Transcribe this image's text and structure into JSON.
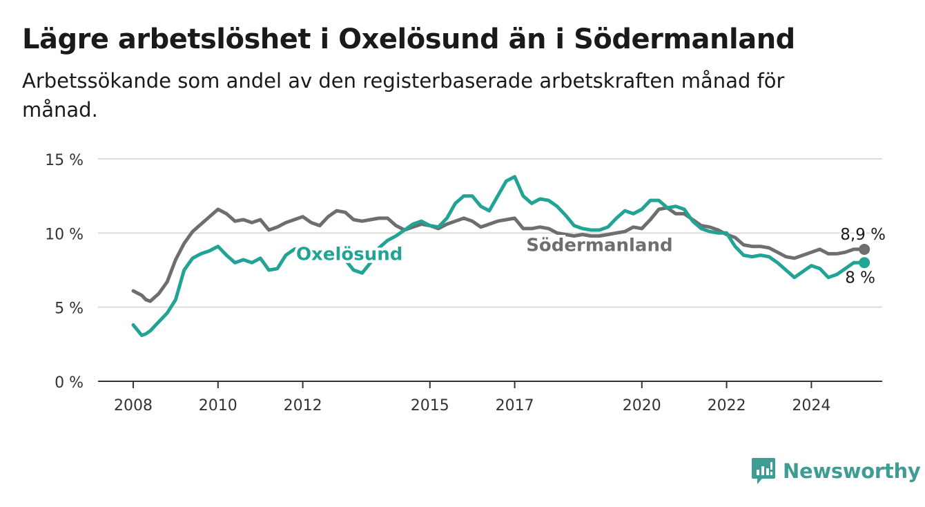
{
  "header": {
    "title": "Lägre arbetslöshet i Oxelösund än i Södermanland",
    "subtitle": "Arbetssökande som andel av den registerbaserade arbetskraften månad för månad."
  },
  "brand": {
    "name": "Newsworthy",
    "icon": "newsworthy-logo-icon",
    "color": "#3f9c95"
  },
  "chart_data": {
    "type": "line",
    "xlim": [
      2008,
      2025.6
    ],
    "ylim": [
      0,
      15
    ],
    "grid": true,
    "y_ticks": [
      {
        "value": 0,
        "label": "0 %"
      },
      {
        "value": 5,
        "label": "5 %"
      },
      {
        "value": 10,
        "label": "10 %"
      },
      {
        "value": 15,
        "label": "15 %"
      }
    ],
    "x_ticks": [
      {
        "value": 2008,
        "label": "2008"
      },
      {
        "value": 2010,
        "label": "2010"
      },
      {
        "value": 2012,
        "label": "2012"
      },
      {
        "value": 2015,
        "label": "2015"
      },
      {
        "value": 2017,
        "label": "2017"
      },
      {
        "value": 2020,
        "label": "2020"
      },
      {
        "value": 2022,
        "label": "2022"
      },
      {
        "value": 2024,
        "label": "2024"
      }
    ],
    "series": [
      {
        "name": "Södermanland",
        "color": "#6e6e70",
        "end_label": "8,9 %",
        "x": [
          2008.0,
          2008.2,
          2008.3,
          2008.4,
          2008.6,
          2008.8,
          2009.0,
          2009.2,
          2009.4,
          2009.6,
          2009.8,
          2010.0,
          2010.2,
          2010.4,
          2010.6,
          2010.8,
          2011.0,
          2011.2,
          2011.4,
          2011.6,
          2011.8,
          2012.0,
          2012.2,
          2012.4,
          2012.6,
          2012.8,
          2013.0,
          2013.2,
          2013.4,
          2013.6,
          2013.8,
          2014.0,
          2014.2,
          2014.4,
          2014.6,
          2014.8,
          2015.0,
          2015.2,
          2015.4,
          2015.6,
          2015.8,
          2016.0,
          2016.2,
          2016.4,
          2016.6,
          2016.8,
          2017.0,
          2017.2,
          2017.4,
          2017.6,
          2017.8,
          2018.0,
          2018.2,
          2018.4,
          2018.6,
          2018.8,
          2019.0,
          2019.2,
          2019.4,
          2019.6,
          2019.8,
          2020.0,
          2020.2,
          2020.4,
          2020.6,
          2020.8,
          2021.0,
          2021.2,
          2021.4,
          2021.6,
          2021.8,
          2022.0,
          2022.2,
          2022.4,
          2022.6,
          2022.8,
          2023.0,
          2023.2,
          2023.4,
          2023.6,
          2023.8,
          2024.0,
          2024.2,
          2024.4,
          2024.6,
          2024.8,
          2025.0,
          2025.25
        ],
        "values": [
          6.1,
          5.8,
          5.5,
          5.4,
          5.9,
          6.7,
          8.2,
          9.3,
          10.1,
          10.6,
          11.1,
          11.6,
          11.3,
          10.8,
          10.9,
          10.7,
          10.9,
          10.2,
          10.4,
          10.7,
          10.9,
          11.1,
          10.7,
          10.5,
          11.1,
          11.5,
          11.4,
          10.9,
          10.8,
          10.9,
          11.0,
          11.0,
          10.5,
          10.2,
          10.4,
          10.6,
          10.5,
          10.3,
          10.6,
          10.8,
          11.0,
          10.8,
          10.4,
          10.6,
          10.8,
          10.9,
          11.0,
          10.3,
          10.3,
          10.4,
          10.3,
          10.0,
          9.9,
          9.8,
          9.9,
          9.8,
          9.8,
          9.9,
          10.0,
          10.1,
          10.4,
          10.3,
          10.9,
          11.6,
          11.7,
          11.3,
          11.3,
          10.9,
          10.5,
          10.4,
          10.2,
          9.9,
          9.7,
          9.2,
          9.1,
          9.1,
          9.0,
          8.7,
          8.4,
          8.3,
          8.5,
          8.7,
          8.9,
          8.6,
          8.6,
          8.7,
          8.9,
          8.9
        ]
      },
      {
        "name": "Oxelösund",
        "color": "#21a396",
        "end_label": "8 %",
        "x": [
          2008.0,
          2008.2,
          2008.3,
          2008.4,
          2008.6,
          2008.8,
          2009.0,
          2009.2,
          2009.4,
          2009.6,
          2009.8,
          2010.0,
          2010.2,
          2010.4,
          2010.6,
          2010.8,
          2011.0,
          2011.2,
          2011.4,
          2011.6,
          2011.8,
          2012.0,
          2012.2,
          2012.4,
          2012.6,
          2012.8,
          2013.0,
          2013.2,
          2013.4,
          2013.6,
          2013.8,
          2014.0,
          2014.2,
          2014.4,
          2014.6,
          2014.8,
          2015.0,
          2015.2,
          2015.4,
          2015.6,
          2015.8,
          2016.0,
          2016.2,
          2016.4,
          2016.6,
          2016.8,
          2017.0,
          2017.2,
          2017.4,
          2017.6,
          2017.8,
          2018.0,
          2018.2,
          2018.4,
          2018.6,
          2018.8,
          2019.0,
          2019.2,
          2019.4,
          2019.6,
          2019.8,
          2020.0,
          2020.2,
          2020.4,
          2020.6,
          2020.8,
          2021.0,
          2021.2,
          2021.4,
          2021.6,
          2021.8,
          2022.0,
          2022.2,
          2022.4,
          2022.6,
          2022.8,
          2023.0,
          2023.2,
          2023.4,
          2023.6,
          2023.8,
          2024.0,
          2024.2,
          2024.4,
          2024.6,
          2024.8,
          2025.0,
          2025.25
        ],
        "values": [
          3.8,
          3.1,
          3.2,
          3.4,
          4.0,
          4.6,
          5.5,
          7.5,
          8.3,
          8.6,
          8.8,
          9.1,
          8.5,
          8.0,
          8.2,
          8.0,
          8.3,
          7.5,
          7.6,
          8.5,
          8.9,
          9.0,
          8.8,
          8.3,
          8.4,
          8.4,
          8.2,
          7.5,
          7.3,
          8.0,
          9.0,
          9.5,
          9.8,
          10.2,
          10.6,
          10.8,
          10.5,
          10.4,
          11.0,
          12.0,
          12.5,
          12.5,
          11.8,
          11.5,
          12.5,
          13.5,
          13.8,
          12.5,
          12.0,
          12.3,
          12.2,
          11.8,
          11.2,
          10.5,
          10.3,
          10.2,
          10.2,
          10.4,
          11.0,
          11.5,
          11.3,
          11.6,
          12.2,
          12.2,
          11.7,
          11.8,
          11.6,
          10.8,
          10.3,
          10.1,
          10.0,
          10.0,
          9.1,
          8.5,
          8.4,
          8.5,
          8.4,
          8.0,
          7.5,
          7.0,
          7.4,
          7.8,
          7.6,
          7.0,
          7.2,
          7.6,
          8.0,
          8.0
        ]
      }
    ],
    "annotations": [
      {
        "label": "Oxelösund",
        "series": "Oxelösund",
        "x": 2013.1,
        "y": 8.6
      },
      {
        "label": "Södermanland",
        "series": "Södermanland",
        "x": 2019.0,
        "y": 9.2
      }
    ]
  }
}
